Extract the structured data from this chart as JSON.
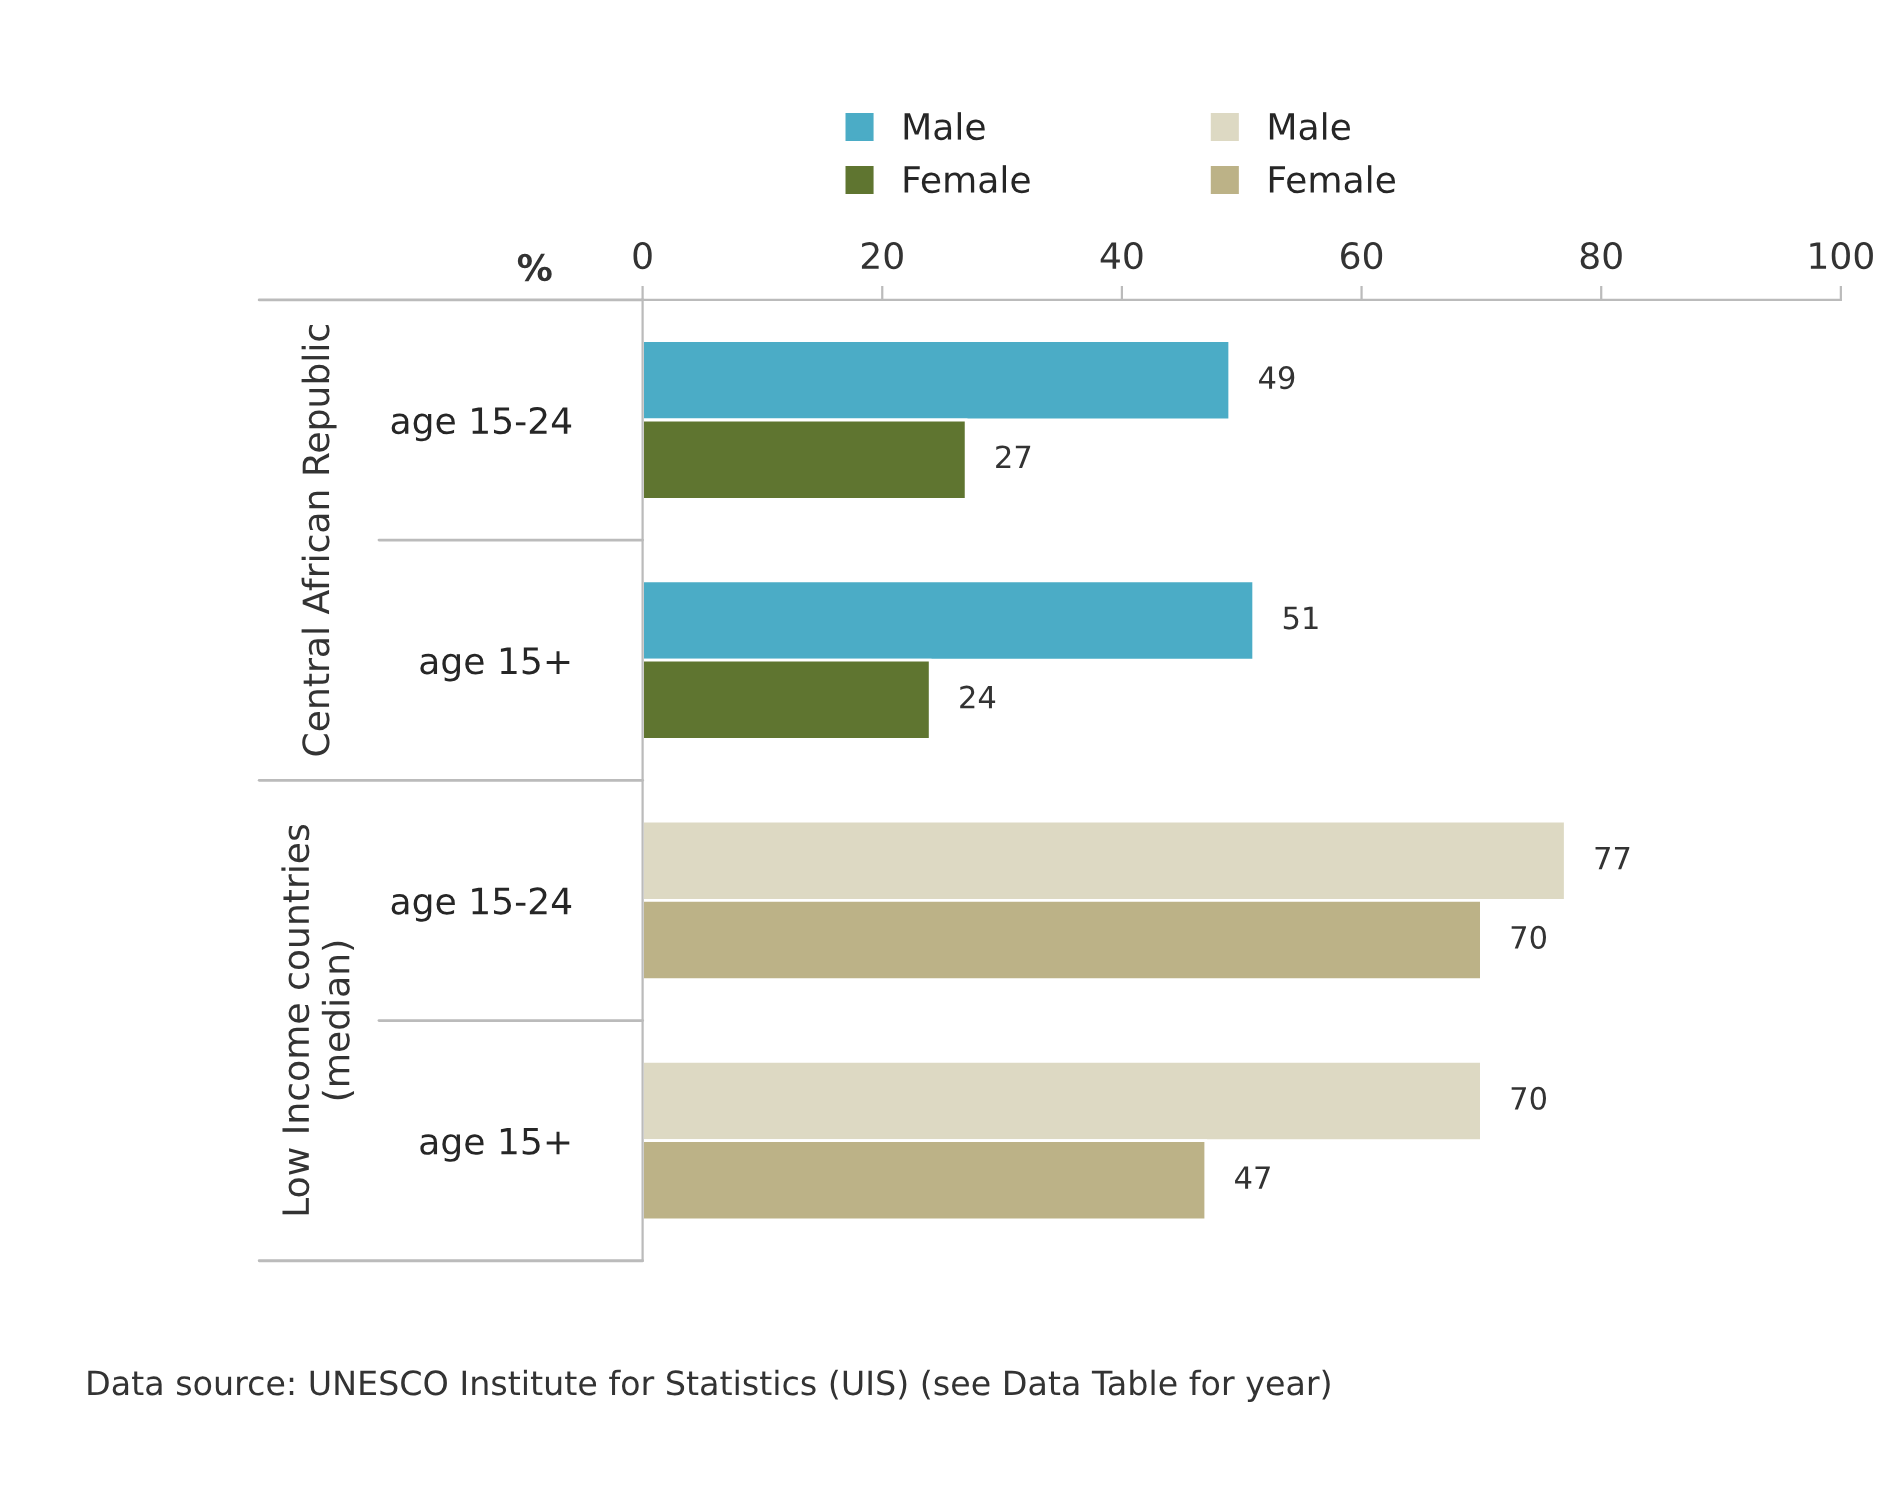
{
  "chart_data": {
    "type": "bar",
    "orientation": "horizontal",
    "xlabel": "%",
    "categories": [
      "age 15-24",
      "age 15+",
      "age 15-24",
      "age 15+"
    ],
    "series": [
      {
        "name": "Male",
        "color": "#4bacc6",
        "values": [
          49,
          51,
          null,
          null
        ]
      },
      {
        "name": "Female",
        "color": "#5f7530",
        "values": [
          27,
          24,
          null,
          null
        ]
      },
      {
        "name": "Male",
        "color": "#ddd9c3",
        "values": [
          null,
          null,
          77,
          70
        ]
      },
      {
        "name": "Female",
        "color": "#bcb287",
        "values": [
          null,
          null,
          70,
          47
        ]
      }
    ],
    "xlim": [
      0,
      100
    ],
    "xticks": [
      0,
      20,
      40,
      60,
      80,
      100
    ],
    "data_labels": true,
    "legend": "top",
    "grid": false,
    "annotations": [
      "Central African Republic",
      "Low Income countries\n(median)",
      "Data source: UNESCO Institute for Statistics (UIS) (see Data Table for year)"
    ]
  }
}
